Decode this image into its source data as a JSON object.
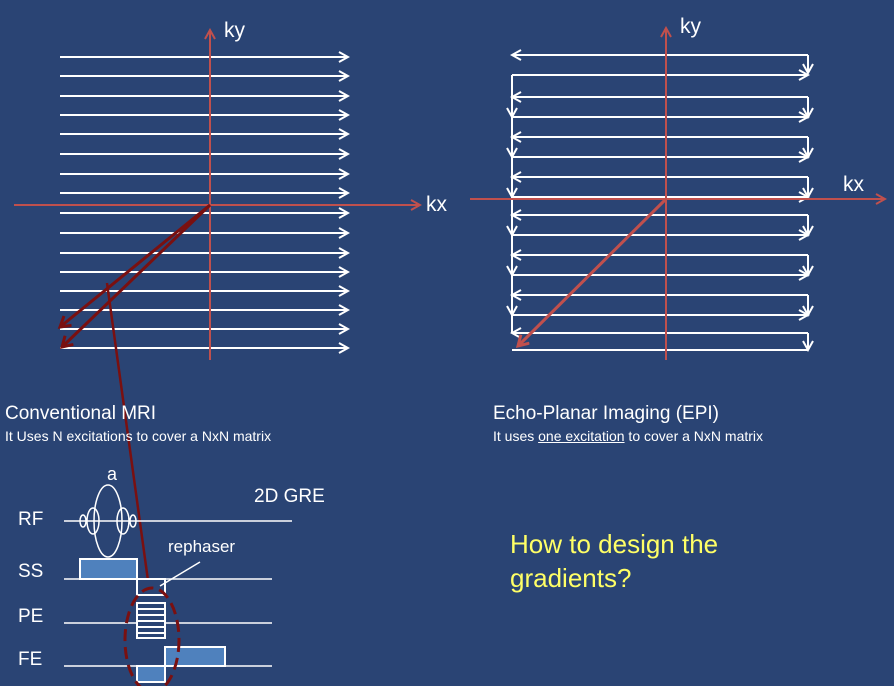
{
  "left_diagram": {
    "ky_label": "ky",
    "kx_label": "kx",
    "caption_title": "Conventional MRI",
    "caption_sub": "It Uses N excitations to cover a NxN matrix"
  },
  "right_diagram": {
    "ky_label": "ky",
    "kx_label": "kx",
    "caption_title": "Echo-Planar Imaging (EPI)",
    "caption_sub_pre": "It uses ",
    "caption_sub_underlined": "one excitation",
    "caption_sub_post": " to cover a NxN matrix"
  },
  "sequence": {
    "title": "2D GRE",
    "flip_label": "a",
    "rephaser_label": "rephaser",
    "rows": [
      "RF",
      "SS",
      "PE",
      "FE"
    ]
  },
  "question": {
    "line1": "How to design the",
    "line2": "gradients?"
  },
  "colors": {
    "background": "#2a4474",
    "axis": "#c0504d",
    "dark_red": "#7a1010",
    "lines": "#ffffff",
    "question": "#ffff66",
    "block_fill": "#4f81bd"
  }
}
